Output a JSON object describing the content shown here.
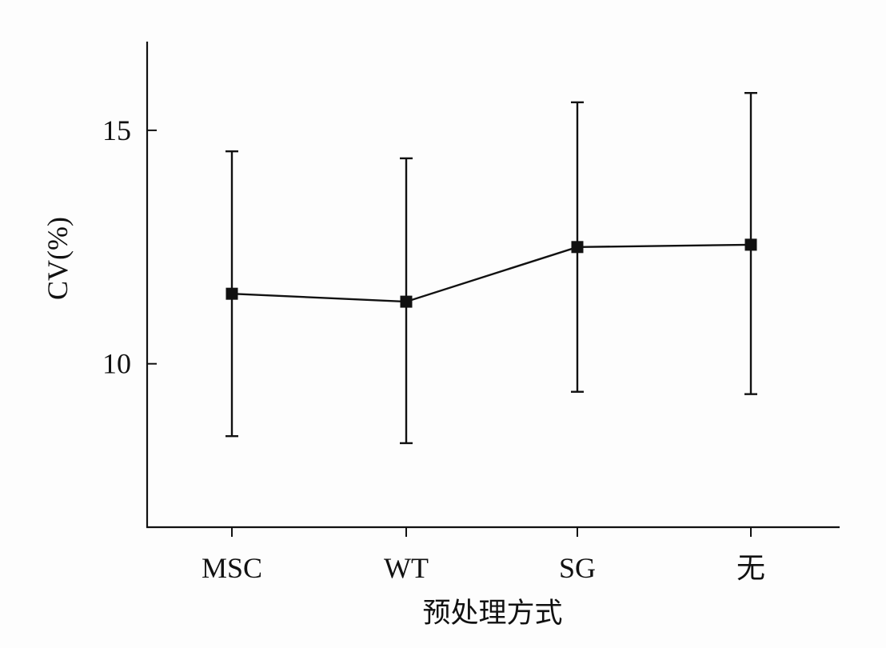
{
  "chart_data": {
    "type": "line",
    "categories": [
      "MSC",
      "WT",
      "SG",
      "无"
    ],
    "series": [
      {
        "values": [
          11.5,
          11.33,
          12.5,
          12.55
        ],
        "error_low": [
          8.45,
          8.3,
          9.4,
          9.35
        ],
        "error_high": [
          14.55,
          14.4,
          15.6,
          15.8
        ]
      }
    ],
    "xlabel": "预处理方式",
    "ylabel": "CV(%)",
    "ylim": [
      6.5,
      16.9
    ],
    "yticks": [
      10,
      15
    ],
    "ytick_labels": [
      "10",
      "15"
    ],
    "grid": false,
    "marker": "square",
    "colors": {
      "line": "#111111",
      "background": "#fdfdfd"
    }
  }
}
